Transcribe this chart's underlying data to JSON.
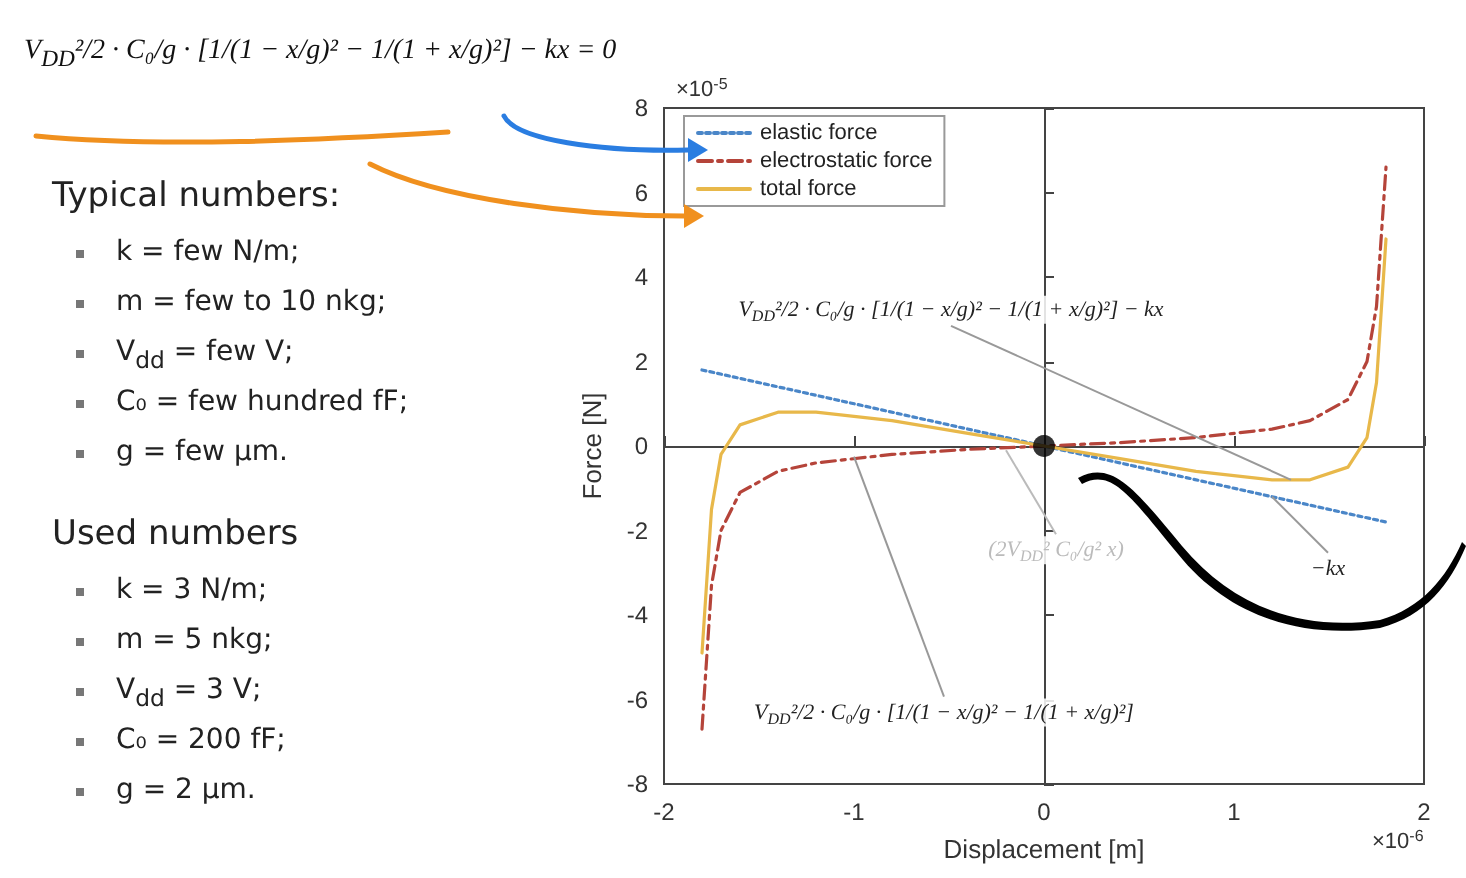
{
  "chart_data": {
    "type": "line",
    "xlabel": "Displacement [m]",
    "ylabel": "Force [N]",
    "x": [
      -1.8,
      -1.75,
      -1.7,
      -1.6,
      -1.4,
      -1.2,
      -0.8,
      -0.4,
      0,
      0.4,
      0.8,
      1.2,
      1.4,
      1.6,
      1.7,
      1.75,
      1.8
    ],
    "series": [
      {
        "name": "elastic force",
        "color": "#4a86c8",
        "line_style": "dotted",
        "x": [
          -1.8,
          1.8
        ],
        "values": [
          1.8,
          -1.8
        ]
      },
      {
        "name": "electrostatic force",
        "color": "#b5443a",
        "line_style": "dashed",
        "values": [
          -6.7,
          -3.3,
          -2.0,
          -1.1,
          -0.6,
          -0.4,
          -0.2,
          -0.08,
          0,
          0.08,
          0.2,
          0.4,
          0.6,
          1.1,
          2.0,
          3.3,
          6.6
        ]
      },
      {
        "name": "total force",
        "color": "#e8b84a",
        "line_style": "solid",
        "values": [
          -4.9,
          -1.5,
          -0.2,
          0.5,
          0.8,
          0.8,
          0.6,
          0.3,
          0,
          -0.3,
          -0.6,
          -0.8,
          -0.8,
          -0.5,
          0.2,
          1.5,
          4.9
        ]
      },
      {
        "type": "scatter",
        "color": "#000000",
        "marker": "circle",
        "x": [
          0
        ],
        "values": [
          0
        ]
      }
    ],
    "xlim": [
      -2,
      2
    ],
    "xticks": [
      -2,
      -1,
      0,
      1,
      2
    ],
    "ylim": [
      -8,
      8
    ],
    "yticks": [
      -8,
      -6,
      -4,
      -2,
      0,
      2,
      4,
      6,
      8
    ],
    "legend": "top left",
    "marker": "none",
    "annotations": [
      "V$_{DD}$²/2 · C₀/g · [1/(1 − x/g)² − 1/(1 + x/g)²] − kx = 0",
      "Typical numbers:",
      "k = few N/m;",
      "m = few to 10 nkg;",
      "V$_{dd}$ = few V;",
      "C₀ = few hundred fF;",
      "g = few µm.",
      "Used numbers",
      "k = 3 N/m;",
      "m = 5 nkg;",
      "V$_{dd}$ = 3 V;",
      "C₀ = 200 fF;",
      "g = 2 µm.",
      "×10$^{-5}$",
      "×10$^{-6}$",
      {
        "text": "V$_{DD}$²/2 · C₀/g · [1/(1 − x/g)² − 1/(1 + x/g)²] − kx",
        "x": 1.3,
        "y": -0.8
      },
      {
        "text": "−kx",
        "x": 1.2,
        "y": -1.2
      },
      {
        "text": "V$_{DD}$²/2 · C₀/g · [1/(1 − x/g)² − 1/(1 + x/g)²]",
        "x": -1.0,
        "y": -0.25
      },
      {
        "text": "(2V$_{DD}$² C₀/g² x)",
        "x": -0.2,
        "y": -0.1
      }
    ]
  }
}
